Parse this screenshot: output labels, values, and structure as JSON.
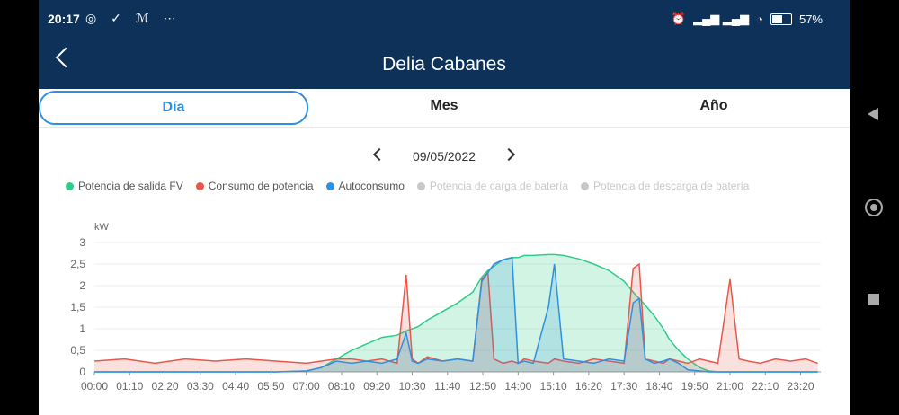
{
  "status": {
    "time": "20:17",
    "left_icons": "◎ ✓ ℳ ⋯",
    "battery": "57%",
    "signal": "▂▄▆ ▂▄▆"
  },
  "header": {
    "title": "Delia Cabanes"
  },
  "tabs": [
    {
      "label": "Día",
      "active": true
    },
    {
      "label": "Mes",
      "active": false
    },
    {
      "label": "Año",
      "active": false
    }
  ],
  "date": "09/05/2022",
  "legend": [
    {
      "label": "Potencia de salida FV",
      "color": "#2ecc8a",
      "enabled": true
    },
    {
      "label": "Consumo de potencia",
      "color": "#e8574a",
      "enabled": true
    },
    {
      "label": "Autoconsumo",
      "color": "#2f8fe0",
      "enabled": true
    },
    {
      "label": "Potencia de carga de batería",
      "color": "#c8c8c8",
      "enabled": false
    },
    {
      "label": "Potencia de descarga de batería",
      "color": "#c8c8c8",
      "enabled": false
    }
  ],
  "chart_data": {
    "type": "area",
    "ylabel": "kW",
    "ylim": [
      0,
      3
    ],
    "yticks": [
      "0",
      "0,5",
      "1",
      "1,5",
      "2",
      "2,5",
      "3"
    ],
    "xticks": [
      "00:00",
      "01:10",
      "02:20",
      "03:30",
      "04:40",
      "05:50",
      "07:00",
      "08:10",
      "09:20",
      "10:30",
      "11:40",
      "12:50",
      "14:00",
      "15:10",
      "16:20",
      "17:30",
      "18:40",
      "19:50",
      "21:00",
      "22:10",
      "23:20"
    ],
    "x_hours": [
      0,
      1,
      2,
      3,
      4,
      5,
      6,
      7,
      7.5,
      8,
      8.5,
      9,
      9.5,
      10,
      10.3,
      10.5,
      10.7,
      11,
      11.5,
      12,
      12.5,
      12.8,
      13,
      13.2,
      13.5,
      13.8,
      14,
      14.2,
      14.5,
      15,
      15.2,
      15.5,
      16,
      16.5,
      17,
      17.5,
      17.8,
      18,
      18.2,
      18.5,
      18.8,
      19,
      19.3,
      19.6,
      20,
      20.3,
      20.6,
      21,
      21.3,
      21.6,
      22,
      22.5,
      23,
      23.5,
      23.9
    ],
    "series": [
      {
        "name": "Potencia de salida FV",
        "color": "#2ecc8a",
        "values": [
          0,
          0,
          0,
          0,
          0,
          0,
          0,
          0.02,
          0.1,
          0.3,
          0.5,
          0.65,
          0.8,
          0.85,
          0.95,
          1.0,
          1.05,
          1.2,
          1.4,
          1.6,
          1.85,
          2.2,
          2.35,
          2.45,
          2.6,
          2.65,
          2.65,
          2.7,
          2.7,
          2.72,
          2.72,
          2.7,
          2.62,
          2.5,
          2.35,
          2.1,
          1.85,
          1.7,
          1.55,
          1.3,
          1.0,
          0.75,
          0.5,
          0.3,
          0.1,
          0.02,
          0,
          0,
          0,
          0,
          0,
          0,
          0,
          0,
          0
        ]
      },
      {
        "name": "Consumo de potencia",
        "color": "#e8574a",
        "values": [
          0.25,
          0.3,
          0.2,
          0.3,
          0.25,
          0.3,
          0.25,
          0.2,
          0.25,
          0.3,
          0.3,
          0.25,
          0.3,
          0.2,
          2.25,
          0.3,
          0.2,
          0.35,
          0.25,
          0.3,
          0.25,
          2.15,
          2.3,
          0.3,
          0.2,
          0.25,
          0.2,
          0.3,
          0.25,
          0.2,
          0.3,
          0.25,
          0.2,
          0.3,
          0.25,
          0.2,
          2.4,
          2.5,
          0.3,
          0.25,
          0.2,
          0.3,
          0.25,
          0.2,
          0.3,
          0.25,
          0.2,
          2.15,
          0.3,
          0.25,
          0.2,
          0.3,
          0.25,
          0.3,
          0.2
        ]
      },
      {
        "name": "Autoconsumo",
        "color": "#2f8fe0",
        "values": [
          0,
          0,
          0,
          0,
          0,
          0,
          0,
          0.02,
          0.1,
          0.25,
          0.2,
          0.25,
          0.2,
          0.3,
          0.9,
          0.25,
          0.2,
          0.3,
          0.25,
          0.3,
          0.25,
          2.1,
          2.3,
          2.5,
          2.6,
          2.65,
          0.2,
          0.25,
          0.2,
          1.5,
          2.5,
          0.3,
          0.25,
          0.2,
          0.3,
          0.25,
          1.6,
          1.7,
          0.3,
          0.2,
          0.25,
          0.3,
          0.2,
          0.05,
          0.02,
          0,
          0,
          0,
          0,
          0,
          0,
          0,
          0,
          0,
          0
        ]
      }
    ]
  }
}
